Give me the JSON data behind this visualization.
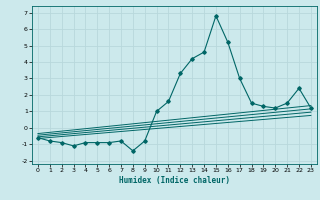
{
  "title": "",
  "xlabel": "Humidex (Indice chaleur)",
  "ylabel": "",
  "bg_color": "#cce9ec",
  "grid_color": "#b8d8dc",
  "line_color": "#006666",
  "xlim": [
    -0.5,
    23.5
  ],
  "ylim": [
    -2.2,
    7.4
  ],
  "xticks": [
    0,
    1,
    2,
    3,
    4,
    5,
    6,
    7,
    8,
    9,
    10,
    11,
    12,
    13,
    14,
    15,
    16,
    17,
    18,
    19,
    20,
    21,
    22,
    23
  ],
  "yticks": [
    -2,
    -1,
    0,
    1,
    2,
    3,
    4,
    5,
    6,
    7
  ],
  "series": [
    [
      0,
      -0.6
    ],
    [
      1,
      -0.8
    ],
    [
      2,
      -0.9
    ],
    [
      3,
      -1.1
    ],
    [
      4,
      -0.9
    ],
    [
      5,
      -0.9
    ],
    [
      6,
      -0.9
    ],
    [
      7,
      -0.8
    ],
    [
      8,
      -1.4
    ],
    [
      9,
      -0.8
    ],
    [
      10,
      1.0
    ],
    [
      11,
      1.6
    ],
    [
      12,
      3.3
    ],
    [
      13,
      4.2
    ],
    [
      14,
      4.6
    ],
    [
      15,
      6.8
    ],
    [
      16,
      5.2
    ],
    [
      17,
      3.0
    ],
    [
      18,
      1.5
    ],
    [
      19,
      1.3
    ],
    [
      20,
      1.2
    ],
    [
      21,
      1.5
    ],
    [
      22,
      2.4
    ],
    [
      23,
      1.2
    ]
  ],
  "linear_lines": [
    {
      "x": [
        0,
        23
      ],
      "y": [
        -0.65,
        0.75
      ]
    },
    {
      "x": [
        0,
        23
      ],
      "y": [
        -0.55,
        0.95
      ]
    },
    {
      "x": [
        0,
        23
      ],
      "y": [
        -0.45,
        1.15
      ]
    },
    {
      "x": [
        0,
        23
      ],
      "y": [
        -0.35,
        1.35
      ]
    }
  ]
}
